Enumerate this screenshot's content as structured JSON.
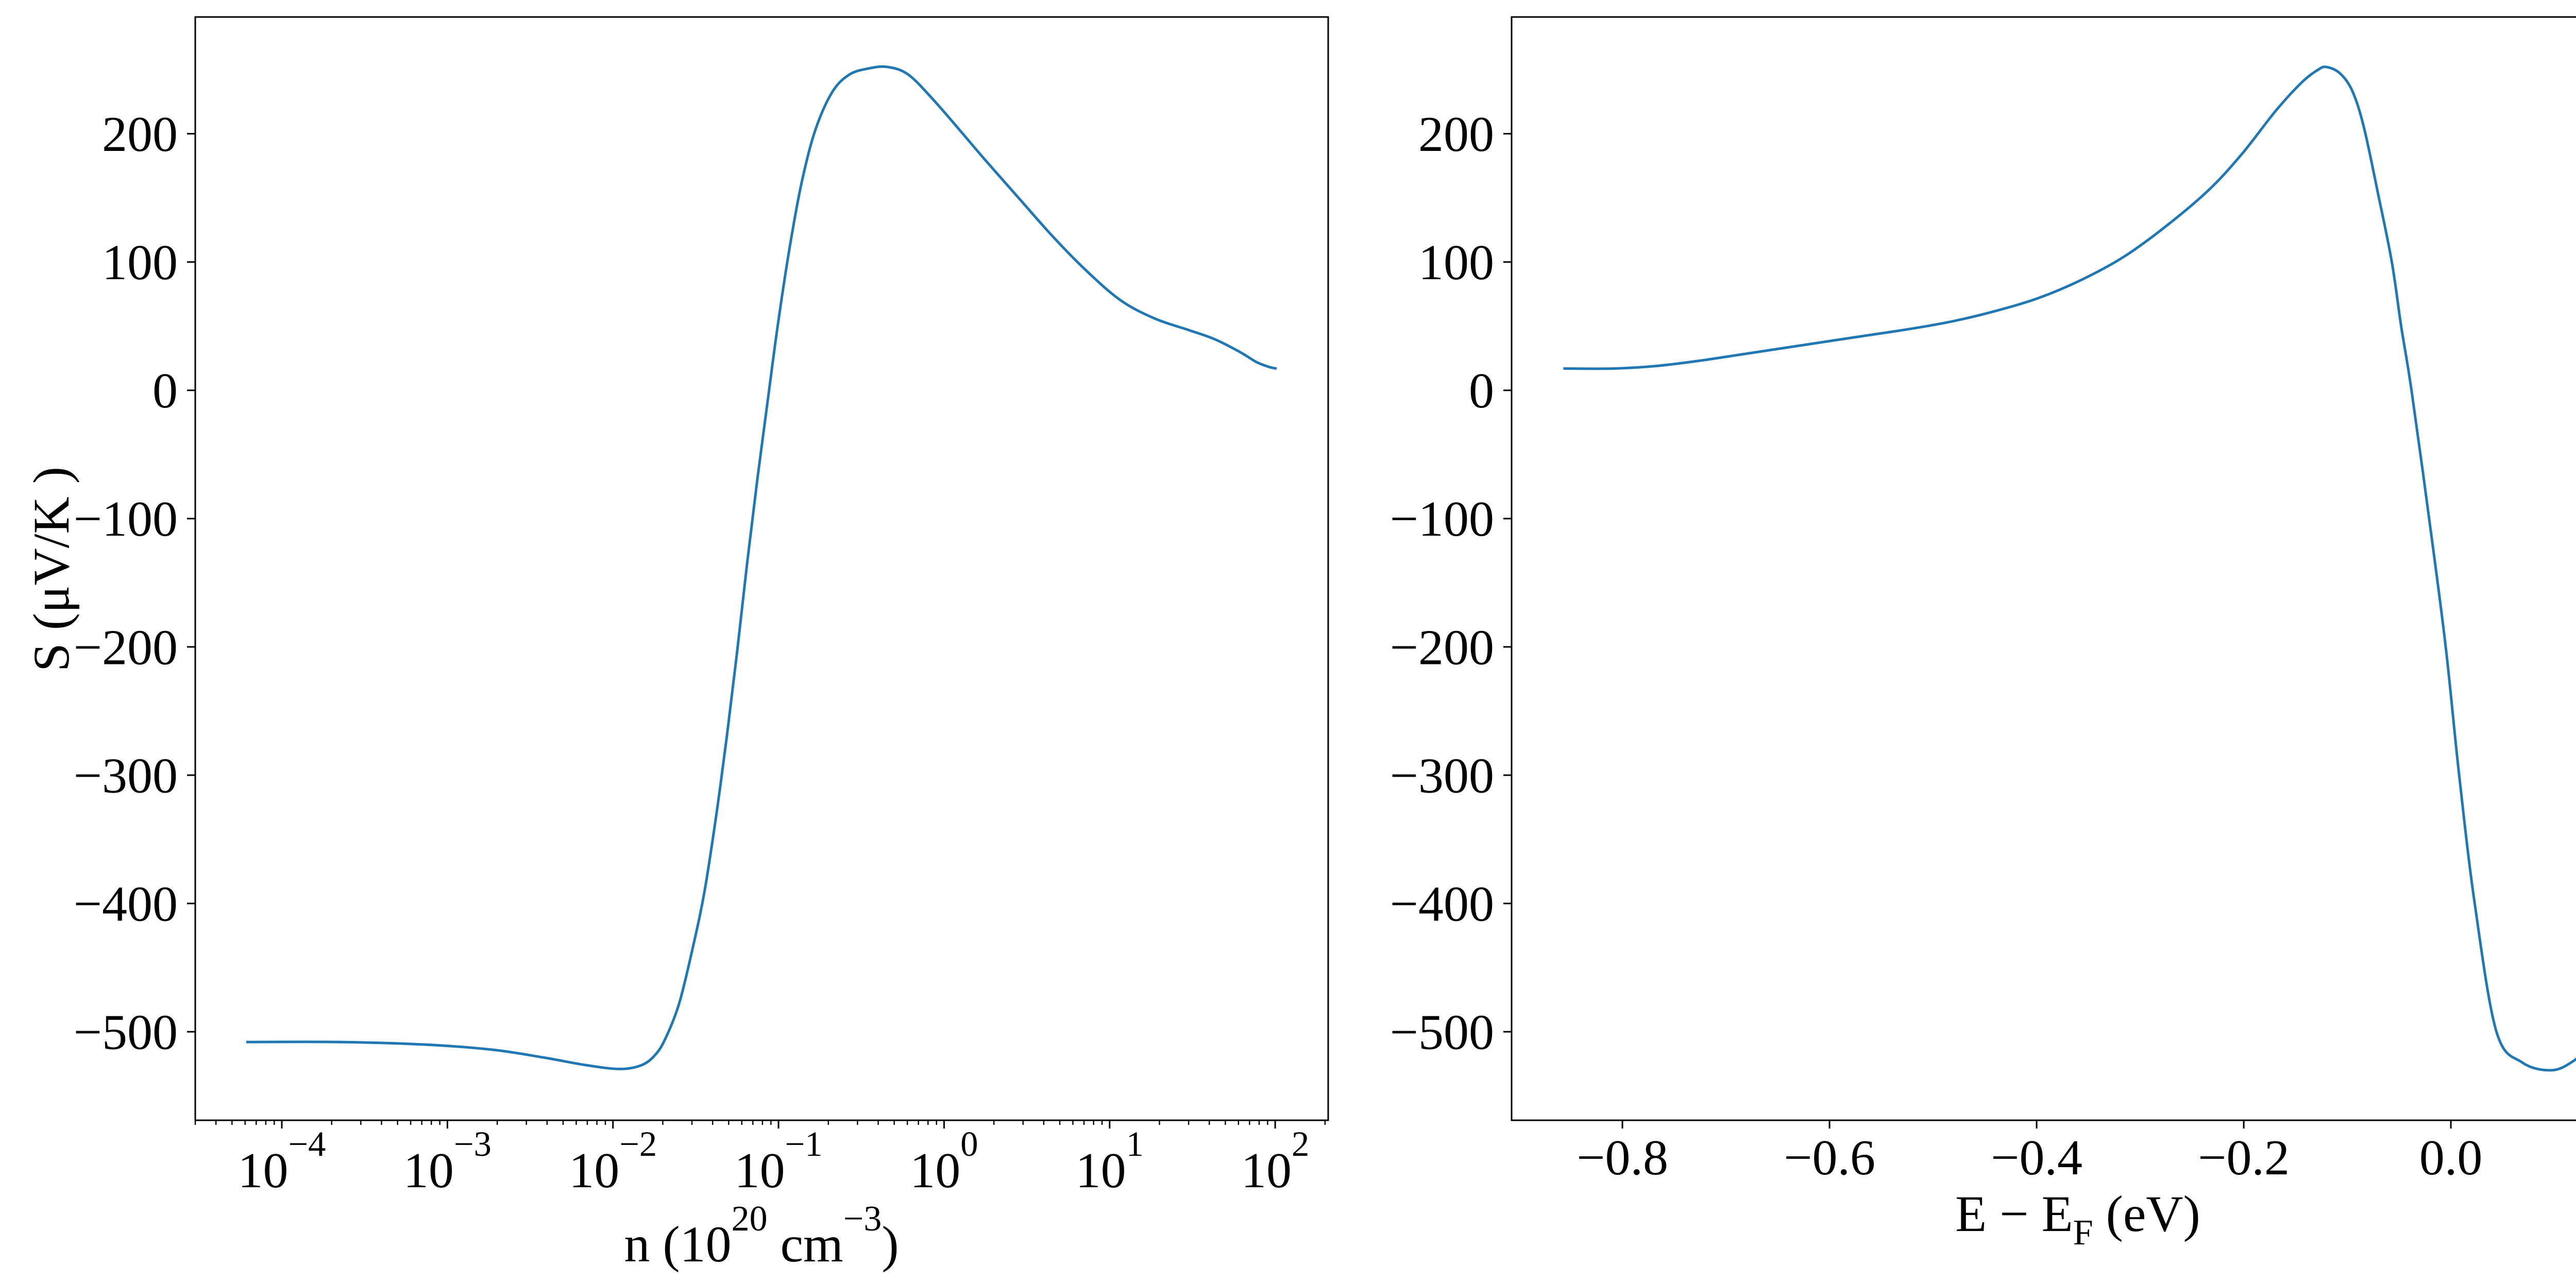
{
  "figure": {
    "background": "#ffffff",
    "axes_color": "#000000",
    "line_color": "#1f77b4"
  },
  "chart_data": [
    {
      "type": "line",
      "xscale": "log",
      "yscale": "linear",
      "xlabel": [
        {
          "text": "n (10"
        },
        {
          "text": "20",
          "script": "sup"
        },
        {
          "text": " cm"
        },
        {
          "text": "−3",
          "script": "sup"
        },
        {
          "text": ")"
        }
      ],
      "ylabel": "S (μV/K )",
      "xlim": [
        3e-05,
        209
      ],
      "ylim": [
        -569,
        291
      ],
      "xticks": [
        0.0001,
        0.001,
        0.01,
        0.1,
        1,
        10,
        100
      ],
      "xtick_labels": [
        {
          "base": "10",
          "sup": "−4"
        },
        {
          "base": "10",
          "sup": "−3"
        },
        {
          "base": "10",
          "sup": "−2"
        },
        {
          "base": "10",
          "sup": "−1"
        },
        {
          "base": "10",
          "sup": "0"
        },
        {
          "base": "10",
          "sup": "1"
        },
        {
          "base": "10",
          "sup": "2"
        }
      ],
      "yticks": [
        -500,
        -400,
        -300,
        -200,
        -100,
        0,
        100,
        200
      ],
      "ytick_labels": [
        "−500",
        "−400",
        "−300",
        "−200",
        "−100",
        "0",
        "100",
        "200"
      ],
      "grid": false,
      "series": [
        {
          "color": "#1f77b4",
          "x": [
            6.1e-05,
            0.000223,
            0.000727,
            0.00187,
            0.00379,
            0.00685,
            0.011,
            0.0149,
            0.018,
            0.0208,
            0.0251,
            0.0303,
            0.0358,
            0.0422,
            0.0487,
            0.0561,
            0.0646,
            0.0744,
            0.0857,
            0.0988,
            0.117,
            0.138,
            0.166,
            0.21,
            0.267,
            0.354,
            0.459,
            0.61,
            0.868,
            1.24,
            1.76,
            2.82,
            4.53,
            7.27,
            11.7,
            18.7,
            30.0,
            42.8,
            61.0,
            77.1,
            93.1,
            102
          ],
          "y": [
            -508,
            -508,
            -510,
            -514,
            -520,
            -526,
            -529,
            -526,
            -518,
            -505,
            -478,
            -435,
            -390,
            -330,
            -270,
            -205,
            -135,
            -70,
            -10,
            50,
            112,
            162,
            202,
            232,
            246,
            251,
            252,
            246,
            226,
            203,
            180,
            150,
            120,
            93,
            70,
            56,
            47,
            40,
            30,
            22,
            18,
            17
          ]
        }
      ]
    },
    {
      "type": "line",
      "xscale": "linear",
      "yscale": "linear",
      "xlabel": [
        {
          "text": "E − E"
        },
        {
          "text": "F",
          "script": "sub"
        },
        {
          "text": " (eV)"
        }
      ],
      "xlim": [
        -0.907,
        0.187
      ],
      "ylim": [
        -569,
        291
      ],
      "xticks": [
        -0.8,
        -0.6,
        -0.4,
        -0.2,
        0.0
      ],
      "xtick_labels": [
        "−0.8",
        "−0.6",
        "−0.4",
        "−0.2",
        "0.0"
      ],
      "yticks": [
        -500,
        -400,
        -300,
        -200,
        -100,
        0,
        100,
        200
      ],
      "ytick_labels": [
        "−500",
        "−400",
        "−300",
        "−200",
        "−100",
        "0",
        "100",
        "200"
      ],
      "grid": false,
      "series": [
        {
          "color": "#1f77b4",
          "x": [
            -0.857,
            -0.808,
            -0.767,
            -0.726,
            -0.685,
            -0.644,
            -0.603,
            -0.562,
            -0.521,
            -0.48,
            -0.439,
            -0.398,
            -0.357,
            -0.316,
            -0.275,
            -0.234,
            -0.202,
            -0.169,
            -0.144,
            -0.128,
            -0.12,
            -0.107,
            -0.095,
            -0.084,
            -0.07,
            -0.057,
            -0.048,
            -0.038,
            -0.021,
            -0.005,
            0.008,
            0.023,
            0.044,
            0.069,
            0.097,
            0.118,
            0.139
          ],
          "y": [
            17,
            17,
            19,
            23,
            28,
            33,
            38,
            43,
            48,
            54,
            62,
            72,
            86,
            104,
            128,
            156,
            184,
            218,
            240,
            250,
            252,
            247,
            233,
            205,
            152,
            100,
            50,
            0,
            -100,
            -200,
            -300,
            -400,
            -500,
            -524,
            -530,
            -523,
            -508
          ]
        }
      ]
    }
  ]
}
